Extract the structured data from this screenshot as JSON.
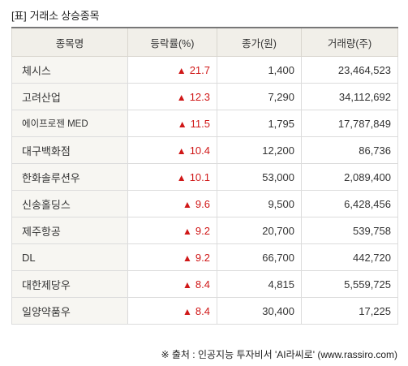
{
  "title": {
    "bracket": "[표]",
    "text": "거래소 상승종목"
  },
  "headers": [
    "종목명",
    "등락률(%)",
    "종가(원)",
    "거래량(주)"
  ],
  "arrow_symbol": "▲",
  "rows": [
    {
      "name": "체시스",
      "change": "21.7",
      "price": "1,400",
      "volume": "23,464,523"
    },
    {
      "name": "고려산업",
      "change": "12.3",
      "price": "7,290",
      "volume": "34,112,692"
    },
    {
      "name": "에이프로젠 MED",
      "change": "11.5",
      "price": "1,795",
      "volume": "17,787,849"
    },
    {
      "name": "대구백화점",
      "change": "10.4",
      "price": "12,200",
      "volume": "86,736"
    },
    {
      "name": "한화솔루션우",
      "change": "10.1",
      "price": "53,000",
      "volume": "2,089,400"
    },
    {
      "name": "신송홀딩스",
      "change": "9.6",
      "price": "9,500",
      "volume": "6,428,456"
    },
    {
      "name": "제주항공",
      "change": "9.2",
      "price": "20,700",
      "volume": "539,758"
    },
    {
      "name": "DL",
      "change": "9.2",
      "price": "66,700",
      "volume": "442,720"
    },
    {
      "name": "대한제당우",
      "change": "8.4",
      "price": "4,815",
      "volume": "5,559,725"
    },
    {
      "name": "일양약품우",
      "change": "8.4",
      "price": "30,400",
      "volume": "17,225"
    }
  ],
  "source": "※ 출처 : 인공지능 투자비서 'AI라씨로' (www.rassiro.com)",
  "colors": {
    "up": "#d01818",
    "header_bg": "#f1efe9"
  }
}
